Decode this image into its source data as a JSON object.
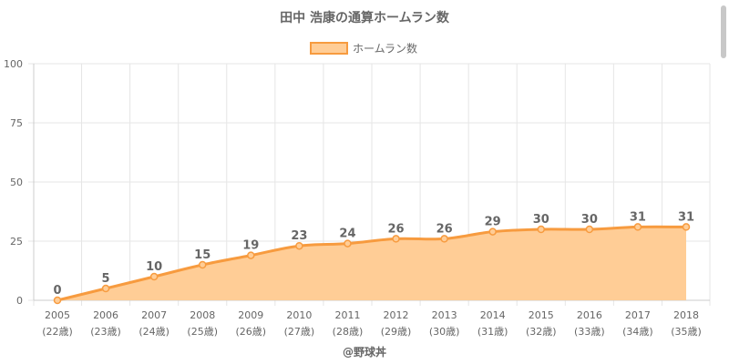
{
  "chart_data": {
    "type": "area",
    "title": "田中 浩康の通算ホームラン数",
    "legend_position": "top-center",
    "series": [
      {
        "name": "ホームラン数",
        "values": [
          0,
          5,
          10,
          15,
          19,
          23,
          24,
          26,
          26,
          29,
          30,
          30,
          31,
          31
        ],
        "line_color": "#f79b3f",
        "fill_color": "#ffcd96"
      }
    ],
    "categories": [
      "2005",
      "2006",
      "2007",
      "2008",
      "2009",
      "2010",
      "2011",
      "2012",
      "2013",
      "2014",
      "2015",
      "2016",
      "2017",
      "2018"
    ],
    "category_sublabels": [
      "(22歳)",
      "(23歳)",
      "(24歳)",
      "(25歳)",
      "(26歳)",
      "(27歳)",
      "(28歳)",
      "(29歳)",
      "(30歳)",
      "(31歳)",
      "(32歳)",
      "(33歳)",
      "(34歳)",
      "(35歳)"
    ],
    "ylim": [
      0,
      100
    ],
    "yticks": [
      0,
      25,
      50,
      75,
      100
    ],
    "grid": true,
    "data_labels": true,
    "credit": "@野球丼"
  }
}
